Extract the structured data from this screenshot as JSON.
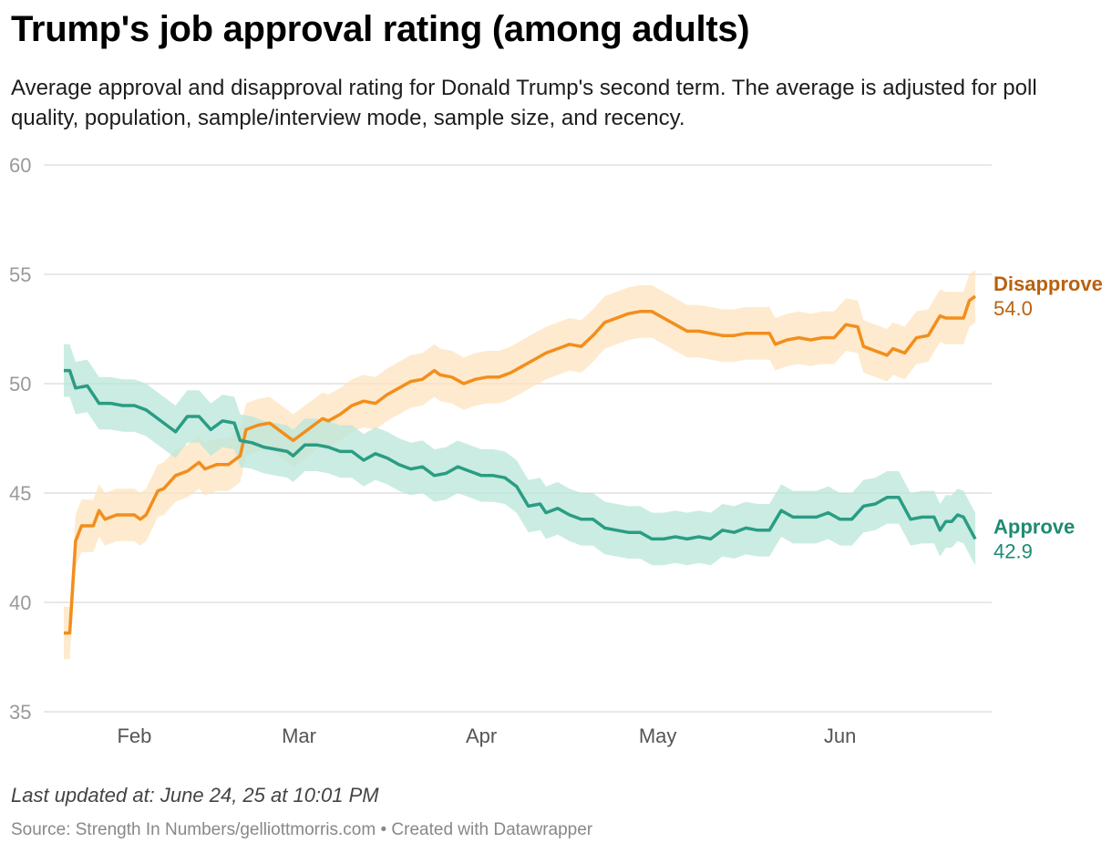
{
  "header": {
    "title": "Trump's job approval rating (among adults)",
    "subtitle": "Average approval and disapproval rating for Donald Trump's second term. The average is adjusted for poll quality, population, sample/interview mode, sample size, and recency."
  },
  "footer": {
    "updated": "Last updated at: June 24, 25 at 10:01 PM",
    "source": "Source: Strength In Numbers/gelliottmorris.com • Created with Datawrapper"
  },
  "colors": {
    "approve": "#2a9d84",
    "approve_band": "#b9e6da",
    "approve_label": "#1f8a72",
    "disapprove": "#f28e1c",
    "disapprove_band": "#fde3bd",
    "disapprove_label": "#b8620f",
    "grid": "#e0e0e0",
    "tick": "#9a9a9a"
  },
  "chart_data": {
    "type": "line",
    "title": "Trump's job approval rating (among adults)",
    "ylim": [
      35,
      60
    ],
    "yticks": [
      35,
      40,
      45,
      50,
      55,
      60
    ],
    "xlim": [
      "2025-01-20",
      "2025-06-24"
    ],
    "xticks": [
      {
        "label": "Feb",
        "date": "2025-02-01"
      },
      {
        "label": "Mar",
        "date": "2025-03-01"
      },
      {
        "label": "Apr",
        "date": "2025-04-01"
      },
      {
        "label": "May",
        "date": "2025-05-01"
      },
      {
        "label": "Jun",
        "date": "2025-06-01"
      }
    ],
    "grid": true,
    "series": [
      {
        "name": "Disapprove",
        "end_label": "54.0",
        "band_width": 1.2,
        "points": [
          [
            "2025-01-20",
            38.6
          ],
          [
            "2025-01-21",
            38.6
          ],
          [
            "2025-01-22",
            42.8
          ],
          [
            "2025-01-23",
            43.5
          ],
          [
            "2025-01-25",
            43.5
          ],
          [
            "2025-01-26",
            44.2
          ],
          [
            "2025-01-27",
            43.8
          ],
          [
            "2025-01-29",
            44.0
          ],
          [
            "2025-02-01",
            44.0
          ],
          [
            "2025-02-02",
            43.8
          ],
          [
            "2025-02-03",
            44.0
          ],
          [
            "2025-02-05",
            45.1
          ],
          [
            "2025-02-06",
            45.2
          ],
          [
            "2025-02-08",
            45.8
          ],
          [
            "2025-02-10",
            46.0
          ],
          [
            "2025-02-12",
            46.4
          ],
          [
            "2025-02-13",
            46.1
          ],
          [
            "2025-02-15",
            46.3
          ],
          [
            "2025-02-17",
            46.3
          ],
          [
            "2025-02-19",
            46.7
          ],
          [
            "2025-02-20",
            47.9
          ],
          [
            "2025-02-22",
            48.1
          ],
          [
            "2025-02-24",
            48.2
          ],
          [
            "2025-02-26",
            47.8
          ],
          [
            "2025-02-28",
            47.4
          ],
          [
            "2025-03-01",
            47.6
          ],
          [
            "2025-03-03",
            48.0
          ],
          [
            "2025-03-05",
            48.4
          ],
          [
            "2025-03-06",
            48.3
          ],
          [
            "2025-03-08",
            48.6
          ],
          [
            "2025-03-10",
            49.0
          ],
          [
            "2025-03-12",
            49.2
          ],
          [
            "2025-03-14",
            49.1
          ],
          [
            "2025-03-16",
            49.5
          ],
          [
            "2025-03-18",
            49.8
          ],
          [
            "2025-03-20",
            50.1
          ],
          [
            "2025-03-22",
            50.2
          ],
          [
            "2025-03-24",
            50.6
          ],
          [
            "2025-03-25",
            50.4
          ],
          [
            "2025-03-27",
            50.3
          ],
          [
            "2025-03-29",
            50.0
          ],
          [
            "2025-03-31",
            50.2
          ],
          [
            "2025-04-02",
            50.3
          ],
          [
            "2025-04-04",
            50.3
          ],
          [
            "2025-04-06",
            50.5
          ],
          [
            "2025-04-08",
            50.8
          ],
          [
            "2025-04-10",
            51.1
          ],
          [
            "2025-04-12",
            51.4
          ],
          [
            "2025-04-14",
            51.6
          ],
          [
            "2025-04-16",
            51.8
          ],
          [
            "2025-04-18",
            51.7
          ],
          [
            "2025-04-20",
            52.2
          ],
          [
            "2025-04-22",
            52.8
          ],
          [
            "2025-04-24",
            53.0
          ],
          [
            "2025-04-26",
            53.2
          ],
          [
            "2025-04-28",
            53.3
          ],
          [
            "2025-04-30",
            53.3
          ],
          [
            "2025-05-02",
            53.0
          ],
          [
            "2025-05-04",
            52.7
          ],
          [
            "2025-05-06",
            52.4
          ],
          [
            "2025-05-08",
            52.4
          ],
          [
            "2025-05-10",
            52.3
          ],
          [
            "2025-05-12",
            52.2
          ],
          [
            "2025-05-14",
            52.2
          ],
          [
            "2025-05-16",
            52.3
          ],
          [
            "2025-05-18",
            52.3
          ],
          [
            "2025-05-20",
            52.3
          ],
          [
            "2025-05-21",
            51.8
          ],
          [
            "2025-05-23",
            52.0
          ],
          [
            "2025-05-25",
            52.1
          ],
          [
            "2025-05-27",
            52.0
          ],
          [
            "2025-05-29",
            52.1
          ],
          [
            "2025-05-31",
            52.1
          ],
          [
            "2025-06-02",
            52.7
          ],
          [
            "2025-06-04",
            52.6
          ],
          [
            "2025-06-05",
            51.7
          ],
          [
            "2025-06-07",
            51.5
          ],
          [
            "2025-06-09",
            51.3
          ],
          [
            "2025-06-10",
            51.6
          ],
          [
            "2025-06-12",
            51.4
          ],
          [
            "2025-06-14",
            52.1
          ],
          [
            "2025-06-16",
            52.2
          ],
          [
            "2025-06-18",
            53.1
          ],
          [
            "2025-06-19",
            53.0
          ],
          [
            "2025-06-20",
            53.0
          ],
          [
            "2025-06-22",
            53.0
          ],
          [
            "2025-06-23",
            53.8
          ],
          [
            "2025-06-24",
            54.0
          ]
        ]
      },
      {
        "name": "Approve",
        "end_label": "42.9",
        "band_width": 1.2,
        "points": [
          [
            "2025-01-20",
            50.6
          ],
          [
            "2025-01-21",
            50.6
          ],
          [
            "2025-01-22",
            49.8
          ],
          [
            "2025-01-24",
            49.9
          ],
          [
            "2025-01-26",
            49.1
          ],
          [
            "2025-01-28",
            49.1
          ],
          [
            "2025-01-30",
            49.0
          ],
          [
            "2025-02-01",
            49.0
          ],
          [
            "2025-02-03",
            48.8
          ],
          [
            "2025-02-05",
            48.4
          ],
          [
            "2025-02-07",
            48.0
          ],
          [
            "2025-02-08",
            47.8
          ],
          [
            "2025-02-10",
            48.5
          ],
          [
            "2025-02-12",
            48.5
          ],
          [
            "2025-02-14",
            47.9
          ],
          [
            "2025-02-16",
            48.3
          ],
          [
            "2025-02-18",
            48.2
          ],
          [
            "2025-02-19",
            47.4
          ],
          [
            "2025-02-21",
            47.3
          ],
          [
            "2025-02-23",
            47.1
          ],
          [
            "2025-02-25",
            47.0
          ],
          [
            "2025-02-27",
            46.9
          ],
          [
            "2025-02-28",
            46.7
          ],
          [
            "2025-03-02",
            47.2
          ],
          [
            "2025-03-04",
            47.2
          ],
          [
            "2025-03-06",
            47.1
          ],
          [
            "2025-03-08",
            46.9
          ],
          [
            "2025-03-10",
            46.9
          ],
          [
            "2025-03-12",
            46.5
          ],
          [
            "2025-03-14",
            46.8
          ],
          [
            "2025-03-16",
            46.6
          ],
          [
            "2025-03-18",
            46.3
          ],
          [
            "2025-03-20",
            46.1
          ],
          [
            "2025-03-22",
            46.2
          ],
          [
            "2025-03-24",
            45.8
          ],
          [
            "2025-03-26",
            45.9
          ],
          [
            "2025-03-28",
            46.2
          ],
          [
            "2025-03-30",
            46.0
          ],
          [
            "2025-04-01",
            45.8
          ],
          [
            "2025-04-03",
            45.8
          ],
          [
            "2025-04-05",
            45.7
          ],
          [
            "2025-04-07",
            45.3
          ],
          [
            "2025-04-09",
            44.4
          ],
          [
            "2025-04-11",
            44.5
          ],
          [
            "2025-04-12",
            44.1
          ],
          [
            "2025-04-14",
            44.3
          ],
          [
            "2025-04-16",
            44.0
          ],
          [
            "2025-04-18",
            43.8
          ],
          [
            "2025-04-20",
            43.8
          ],
          [
            "2025-04-22",
            43.4
          ],
          [
            "2025-04-24",
            43.3
          ],
          [
            "2025-04-26",
            43.2
          ],
          [
            "2025-04-28",
            43.2
          ],
          [
            "2025-04-30",
            42.9
          ],
          [
            "2025-05-02",
            42.9
          ],
          [
            "2025-05-04",
            43.0
          ],
          [
            "2025-05-06",
            42.9
          ],
          [
            "2025-05-08",
            43.0
          ],
          [
            "2025-05-10",
            42.9
          ],
          [
            "2025-05-12",
            43.3
          ],
          [
            "2025-05-14",
            43.2
          ],
          [
            "2025-05-16",
            43.4
          ],
          [
            "2025-05-18",
            43.3
          ],
          [
            "2025-05-20",
            43.3
          ],
          [
            "2025-05-22",
            44.2
          ],
          [
            "2025-05-24",
            43.9
          ],
          [
            "2025-05-26",
            43.9
          ],
          [
            "2025-05-28",
            43.9
          ],
          [
            "2025-05-30",
            44.1
          ],
          [
            "2025-06-01",
            43.8
          ],
          [
            "2025-06-03",
            43.8
          ],
          [
            "2025-06-05",
            44.4
          ],
          [
            "2025-06-07",
            44.5
          ],
          [
            "2025-06-09",
            44.8
          ],
          [
            "2025-06-11",
            44.8
          ],
          [
            "2025-06-13",
            43.8
          ],
          [
            "2025-06-15",
            43.9
          ],
          [
            "2025-06-17",
            43.9
          ],
          [
            "2025-06-18",
            43.3
          ],
          [
            "2025-06-19",
            43.7
          ],
          [
            "2025-06-20",
            43.7
          ],
          [
            "2025-06-21",
            44.0
          ],
          [
            "2025-06-22",
            43.9
          ],
          [
            "2025-06-23",
            43.4
          ],
          [
            "2025-06-24",
            42.9
          ]
        ]
      }
    ]
  }
}
